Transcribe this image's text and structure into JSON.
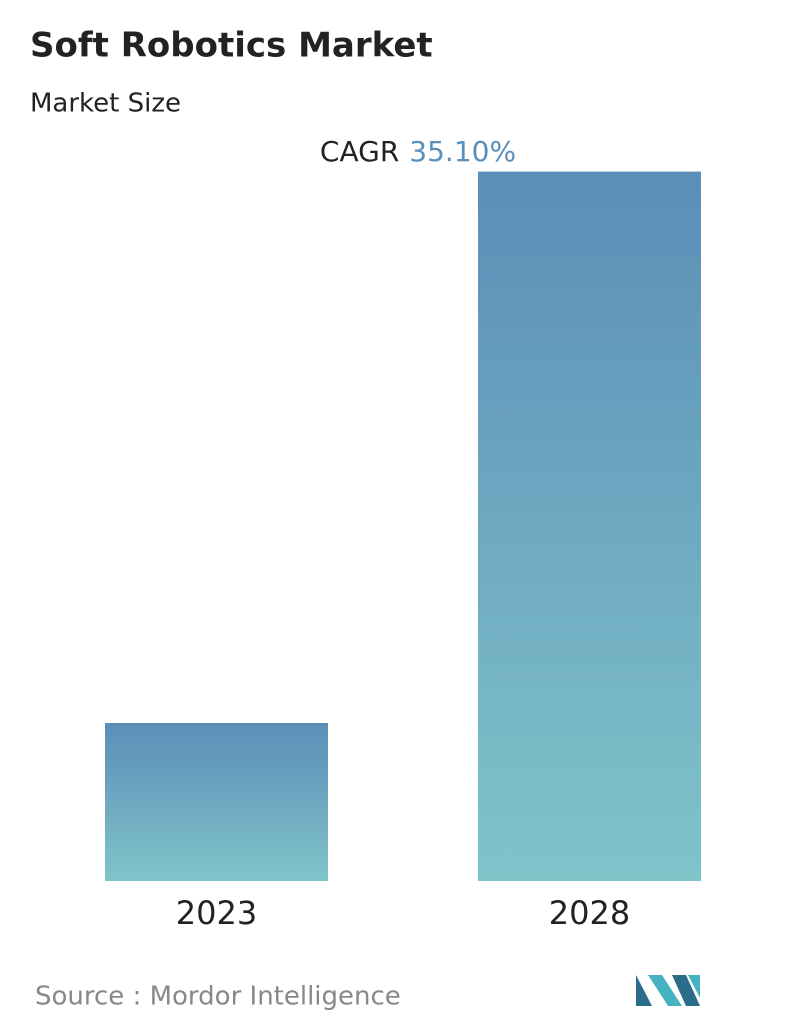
{
  "chart_data": {
    "type": "bar",
    "title": "Soft Robotics Market",
    "subtitle": "Market Size",
    "annotation": {
      "label": "CAGR",
      "value": "35.10%"
    },
    "categories": [
      "2023",
      "2028"
    ],
    "values": [
      1,
      4.49
    ],
    "ylim": [
      0,
      4.5
    ],
    "color_top": "#5b8eb8",
    "color_bottom": "#80c4ca",
    "source": "Source :  Mordor Intelligence"
  }
}
